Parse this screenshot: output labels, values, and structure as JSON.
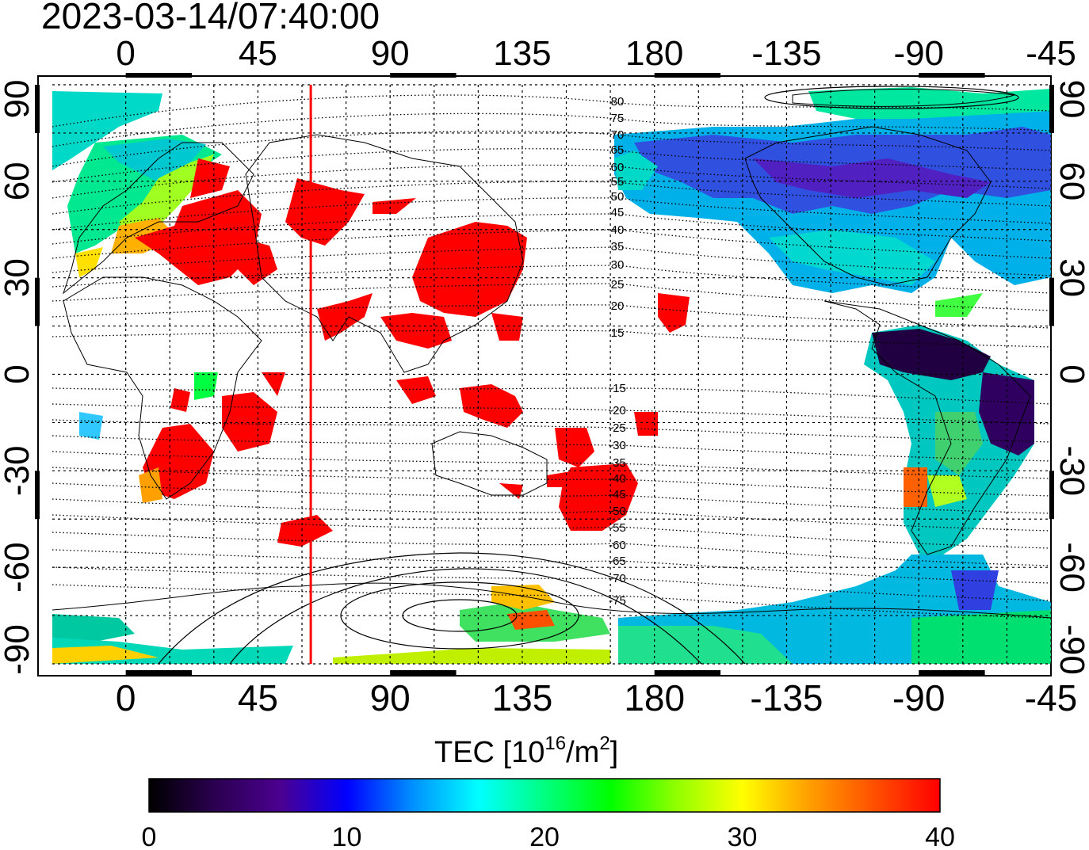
{
  "title": "2023-03-14/07:40:00",
  "lon_tick_labels": [
    "0",
    "45",
    "90",
    "135",
    "180",
    "-135",
    "-90",
    "-45"
  ],
  "lat_tick_labels": [
    "90",
    "60",
    "30",
    "0",
    "-30",
    "-60",
    "-90"
  ],
  "colorbar": {
    "label_main": "TEC  [10",
    "label_exp1": "16",
    "label_mid": "/m",
    "label_exp2": "2",
    "label_end": "]",
    "tick_labels": [
      "0",
      "10",
      "20",
      "30",
      "40"
    ],
    "colors": [
      "#000000",
      "#2a0050",
      "#4b0090",
      "#0000ff",
      "#0090ff",
      "#00ffff",
      "#00ff80",
      "#00ff00",
      "#90ff00",
      "#ffff00",
      "#ffa000",
      "#ff5000",
      "#ff0000"
    ]
  },
  "contour_labels": [
    "80",
    "75",
    "70",
    "65",
    "60",
    "55",
    "50",
    "45",
    "40",
    "35",
    "30",
    "25",
    "20",
    "15",
    "-15",
    "-20",
    "-25",
    "-30",
    "-35",
    "-40",
    "-45",
    "-50",
    "-55",
    "-60",
    "-65",
    "-70",
    "-75"
  ],
  "colors": {
    "high_tec": "#ff0000",
    "terminator_line": "#ff0000",
    "coast": "#000000",
    "grid": "#000000"
  },
  "chart_data": {
    "type": "heatmap",
    "title": "2023-03-14/07:40:00",
    "xlabel": "",
    "ylabel": "",
    "colorbar_label": "TEC [10^16/m^2]",
    "xlim": [
      -25,
      315
    ],
    "ylim": [
      -90,
      90
    ],
    "x_ticks": [
      0,
      45,
      90,
      135,
      180,
      225,
      270,
      315
    ],
    "y_ticks": [
      90,
      60,
      30,
      0,
      -30,
      -60,
      -90
    ],
    "colorbar_range": [
      0,
      40
    ],
    "grid": true,
    "red_meridian_lon": 63
  }
}
